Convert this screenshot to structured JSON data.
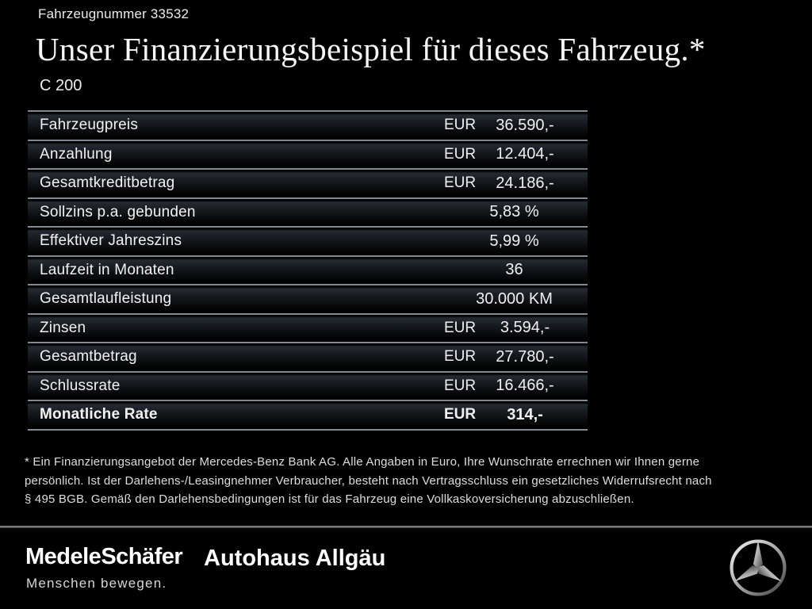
{
  "header": {
    "vehicle_number": "Fahrzeugnummer 33532",
    "title": "Unser Finanzierungsbeispiel für dieses Fahrzeug.*",
    "model": "C 200"
  },
  "table": {
    "rows": [
      {
        "label": "Fahrzeugpreis",
        "currency": "EUR",
        "value": "36.590,-",
        "bold": false
      },
      {
        "label": "Anzahlung",
        "currency": "EUR",
        "value": "12.404,-",
        "bold": false
      },
      {
        "label": "Gesamtkreditbetrag",
        "currency": "EUR",
        "value": "24.186,-",
        "bold": false
      },
      {
        "label": "Sollzins p.a. gebunden",
        "currency": "",
        "value": "5,83 %",
        "bold": false
      },
      {
        "label": "Effektiver Jahreszins",
        "currency": "",
        "value": "5,99 %",
        "bold": false
      },
      {
        "label": "Laufzeit in Monaten",
        "currency": "",
        "value": "36",
        "bold": false
      },
      {
        "label": "Gesamtlaufleistung",
        "currency": "",
        "value": "30.000 KM",
        "bold": false
      },
      {
        "label": "Zinsen",
        "currency": "EUR",
        "value": "3.594,-",
        "bold": false
      },
      {
        "label": "Gesamtbetrag",
        "currency": "EUR",
        "value": "27.780,-",
        "bold": false
      },
      {
        "label": "Schlussrate",
        "currency": "EUR",
        "value": "16.466,-",
        "bold": false
      },
      {
        "label": "Monatliche Rate",
        "currency": "EUR",
        "value": "314,-",
        "bold": true
      }
    ]
  },
  "footnote": {
    "lines": [
      "* Ein Finanzierungsangebot der Mercedes-Benz Bank AG. Alle Angaben in Euro, Ihre Wunschrate errechnen wir Ihnen gerne",
      "persönlich. Ist der Darlehens-/Leasingnehmer Verbraucher, besteht nach Vertragsschluss ein gesetzliches Widerrufsrecht nach",
      "§ 495 BGB. Gemäß den Darlehensbedingungen ist für das Fahrzeug eine Vollkaskoversicherung abzuschließen."
    ]
  },
  "footer": {
    "dealer_name": "MedeleSchäfer",
    "dealer_tagline": "Menschen bewegen.",
    "branch_name": "Autohaus Allgäu",
    "brand_icon": "mercedes-star-icon"
  },
  "colors": {
    "background": "#010101",
    "text": "#f0f0f0",
    "separator": "#828a96",
    "row_gradient_top": "#252a32",
    "footer_divider": "#6c6c6c",
    "star_silver_light": "#f2f2f2",
    "star_silver_dark": "#3f3f3f"
  }
}
